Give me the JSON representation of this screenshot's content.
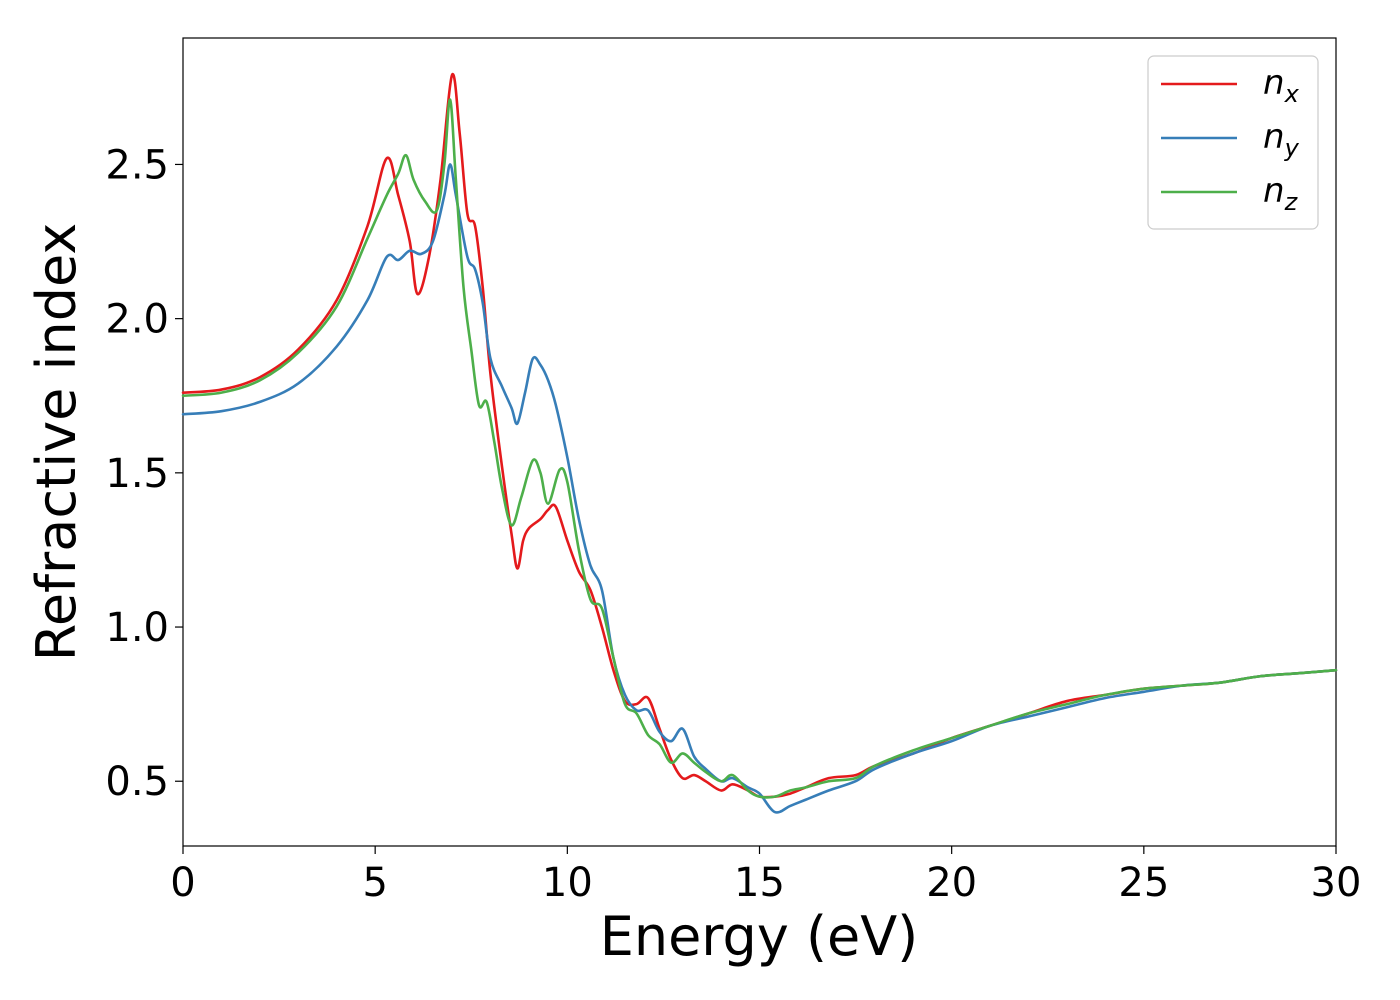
{
  "chart_data": {
    "type": "line",
    "xlabel": "Energy (eV)",
    "ylabel": "Refractive index",
    "xlim": [
      0,
      30
    ],
    "ylim": [
      0.29,
      2.91
    ],
    "xticks": [
      0,
      5,
      10,
      15,
      20,
      25,
      30
    ],
    "xtick_labels": [
      "0",
      "5",
      "10",
      "15",
      "20",
      "25",
      "30"
    ],
    "yticks": [
      0.5,
      1.0,
      1.5,
      2.0,
      2.5
    ],
    "ytick_labels": [
      "0.5",
      "1.0",
      "1.5",
      "2.0",
      "2.5"
    ],
    "grid": false,
    "legend_position": "top-right",
    "series": [
      {
        "name": "n_x",
        "label_base": "n",
        "label_sub": "x",
        "color": "#e41a1c",
        "points": [
          [
            0,
            1.76
          ],
          [
            1,
            1.77
          ],
          [
            2,
            1.81
          ],
          [
            3,
            1.9
          ],
          [
            4,
            2.06
          ],
          [
            4.8,
            2.3
          ],
          [
            5.3,
            2.52
          ],
          [
            5.6,
            2.4
          ],
          [
            5.9,
            2.25
          ],
          [
            6.1,
            2.08
          ],
          [
            6.4,
            2.2
          ],
          [
            6.7,
            2.45
          ],
          [
            7.0,
            2.79
          ],
          [
            7.2,
            2.6
          ],
          [
            7.4,
            2.34
          ],
          [
            7.6,
            2.3
          ],
          [
            7.8,
            2.1
          ],
          [
            8.0,
            1.82
          ],
          [
            8.3,
            1.52
          ],
          [
            8.55,
            1.3
          ],
          [
            8.7,
            1.19
          ],
          [
            8.85,
            1.28
          ],
          [
            9.0,
            1.32
          ],
          [
            9.3,
            1.35
          ],
          [
            9.5,
            1.38
          ],
          [
            9.7,
            1.39
          ],
          [
            10.0,
            1.28
          ],
          [
            10.3,
            1.18
          ],
          [
            10.6,
            1.12
          ],
          [
            10.9,
            1.0
          ],
          [
            11.2,
            0.86
          ],
          [
            11.5,
            0.76
          ],
          [
            11.8,
            0.75
          ],
          [
            12.1,
            0.77
          ],
          [
            12.4,
            0.67
          ],
          [
            12.7,
            0.57
          ],
          [
            13.0,
            0.51
          ],
          [
            13.3,
            0.52
          ],
          [
            13.6,
            0.5
          ],
          [
            14.0,
            0.47
          ],
          [
            14.3,
            0.49
          ],
          [
            14.7,
            0.47
          ],
          [
            15.0,
            0.45
          ],
          [
            15.4,
            0.45
          ],
          [
            15.8,
            0.46
          ],
          [
            16.2,
            0.48
          ],
          [
            16.8,
            0.51
          ],
          [
            17.5,
            0.52
          ],
          [
            18.0,
            0.55
          ],
          [
            19.0,
            0.59
          ],
          [
            20.0,
            0.64
          ],
          [
            21.0,
            0.68
          ],
          [
            22.0,
            0.72
          ],
          [
            23.0,
            0.76
          ],
          [
            24.0,
            0.78
          ],
          [
            25.0,
            0.8
          ],
          [
            26.0,
            0.81
          ],
          [
            27.0,
            0.82
          ],
          [
            28.0,
            0.84
          ],
          [
            29.0,
            0.85
          ],
          [
            30.0,
            0.86
          ]
        ]
      },
      {
        "name": "n_y",
        "label_base": "n",
        "label_sub": "y",
        "color": "#377eb8",
        "points": [
          [
            0,
            1.69
          ],
          [
            1,
            1.7
          ],
          [
            2,
            1.73
          ],
          [
            3,
            1.79
          ],
          [
            4,
            1.91
          ],
          [
            4.8,
            2.06
          ],
          [
            5.3,
            2.2
          ],
          [
            5.6,
            2.19
          ],
          [
            5.9,
            2.22
          ],
          [
            6.2,
            2.21
          ],
          [
            6.5,
            2.25
          ],
          [
            6.8,
            2.4
          ],
          [
            6.95,
            2.5
          ],
          [
            7.1,
            2.4
          ],
          [
            7.4,
            2.2
          ],
          [
            7.6,
            2.16
          ],
          [
            7.8,
            2.05
          ],
          [
            8.0,
            1.87
          ],
          [
            8.3,
            1.78
          ],
          [
            8.55,
            1.71
          ],
          [
            8.7,
            1.66
          ],
          [
            8.9,
            1.76
          ],
          [
            9.1,
            1.87
          ],
          [
            9.3,
            1.85
          ],
          [
            9.5,
            1.8
          ],
          [
            9.7,
            1.72
          ],
          [
            10.0,
            1.55
          ],
          [
            10.3,
            1.35
          ],
          [
            10.6,
            1.2
          ],
          [
            10.9,
            1.12
          ],
          [
            11.2,
            0.9
          ],
          [
            11.5,
            0.78
          ],
          [
            11.8,
            0.73
          ],
          [
            12.1,
            0.73
          ],
          [
            12.4,
            0.66
          ],
          [
            12.7,
            0.63
          ],
          [
            13.0,
            0.67
          ],
          [
            13.3,
            0.58
          ],
          [
            13.6,
            0.54
          ],
          [
            14.0,
            0.5
          ],
          [
            14.3,
            0.51
          ],
          [
            14.7,
            0.48
          ],
          [
            15.0,
            0.46
          ],
          [
            15.4,
            0.4
          ],
          [
            15.8,
            0.42
          ],
          [
            16.2,
            0.44
          ],
          [
            16.8,
            0.47
          ],
          [
            17.5,
            0.5
          ],
          [
            18.0,
            0.54
          ],
          [
            19.0,
            0.59
          ],
          [
            20.0,
            0.63
          ],
          [
            21.0,
            0.68
          ],
          [
            22.0,
            0.71
          ],
          [
            23.0,
            0.74
          ],
          [
            24.0,
            0.77
          ],
          [
            25.0,
            0.79
          ],
          [
            26.0,
            0.81
          ],
          [
            27.0,
            0.82
          ],
          [
            28.0,
            0.84
          ],
          [
            29.0,
            0.85
          ],
          [
            30.0,
            0.86
          ]
        ]
      },
      {
        "name": "n_z",
        "label_base": "n",
        "label_sub": "z",
        "color": "#4daf4a",
        "points": [
          [
            0,
            1.75
          ],
          [
            1,
            1.76
          ],
          [
            2,
            1.8
          ],
          [
            3,
            1.89
          ],
          [
            4,
            2.04
          ],
          [
            4.8,
            2.26
          ],
          [
            5.3,
            2.4
          ],
          [
            5.6,
            2.47
          ],
          [
            5.8,
            2.53
          ],
          [
            6.0,
            2.45
          ],
          [
            6.3,
            2.38
          ],
          [
            6.6,
            2.35
          ],
          [
            6.8,
            2.5
          ],
          [
            6.95,
            2.71
          ],
          [
            7.1,
            2.45
          ],
          [
            7.3,
            2.1
          ],
          [
            7.5,
            1.9
          ],
          [
            7.7,
            1.72
          ],
          [
            7.9,
            1.73
          ],
          [
            8.1,
            1.6
          ],
          [
            8.3,
            1.45
          ],
          [
            8.55,
            1.33
          ],
          [
            8.8,
            1.42
          ],
          [
            9.1,
            1.54
          ],
          [
            9.3,
            1.5
          ],
          [
            9.5,
            1.4
          ],
          [
            9.8,
            1.51
          ],
          [
            10.0,
            1.47
          ],
          [
            10.3,
            1.25
          ],
          [
            10.6,
            1.09
          ],
          [
            10.9,
            1.06
          ],
          [
            11.2,
            0.9
          ],
          [
            11.5,
            0.75
          ],
          [
            11.8,
            0.72
          ],
          [
            12.1,
            0.65
          ],
          [
            12.4,
            0.62
          ],
          [
            12.7,
            0.56
          ],
          [
            13.0,
            0.59
          ],
          [
            13.3,
            0.56
          ],
          [
            13.6,
            0.53
          ],
          [
            14.0,
            0.5
          ],
          [
            14.3,
            0.52
          ],
          [
            14.7,
            0.47
          ],
          [
            15.0,
            0.45
          ],
          [
            15.4,
            0.45
          ],
          [
            15.8,
            0.47
          ],
          [
            16.2,
            0.48
          ],
          [
            16.8,
            0.5
          ],
          [
            17.5,
            0.51
          ],
          [
            18.0,
            0.55
          ],
          [
            19.0,
            0.6
          ],
          [
            20.0,
            0.64
          ],
          [
            21.0,
            0.68
          ],
          [
            22.0,
            0.72
          ],
          [
            23.0,
            0.75
          ],
          [
            24.0,
            0.78
          ],
          [
            25.0,
            0.8
          ],
          [
            26.0,
            0.81
          ],
          [
            27.0,
            0.82
          ],
          [
            28.0,
            0.84
          ],
          [
            29.0,
            0.85
          ],
          [
            30.0,
            0.86
          ]
        ]
      }
    ]
  }
}
